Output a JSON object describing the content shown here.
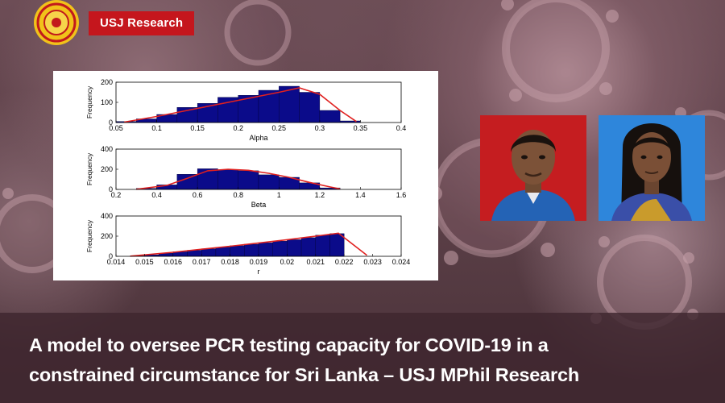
{
  "header": {
    "badge_label": "USJ Research",
    "logo_icon": "usj-crest-logo"
  },
  "colors": {
    "badge": "#c5161d",
    "bars": "#0b0b8a",
    "fit_line": "#e0201f",
    "photo1_bg": "#c51d20",
    "photo2_bg": "#2e86db"
  },
  "chart_data": [
    {
      "type": "bar",
      "xlabel": "Alpha",
      "ylabel": "Frequency",
      "xlim": [
        0.05,
        0.4
      ],
      "ylim": [
        0,
        200
      ],
      "x_ticks": [
        "0.05",
        "0.1",
        "0.15",
        "0.2",
        "0.25",
        "0.3",
        "0.35",
        "0.4"
      ],
      "y_ticks": [
        "0",
        "100",
        "200"
      ],
      "bin_edges": [
        0.05,
        0.075,
        0.1,
        0.125,
        0.15,
        0.175,
        0.2,
        0.225,
        0.25,
        0.275,
        0.3,
        0.325,
        0.35
      ],
      "values": [
        5,
        18,
        40,
        75,
        95,
        125,
        135,
        160,
        180,
        150,
        60,
        8
      ],
      "fit": [
        [
          0.06,
          2
        ],
        [
          0.1,
          30
        ],
        [
          0.15,
          70
        ],
        [
          0.2,
          110
        ],
        [
          0.25,
          150
        ],
        [
          0.275,
          172
        ],
        [
          0.3,
          140
        ],
        [
          0.325,
          60
        ],
        [
          0.345,
          5
        ]
      ]
    },
    {
      "type": "bar",
      "xlabel": "Beta",
      "ylabel": "Frequency",
      "xlim": [
        0.2,
        1.6
      ],
      "ylim": [
        0,
        400
      ],
      "x_ticks": [
        "0.2",
        "0.4",
        "0.6",
        "0.8",
        "1",
        "1.2",
        "1.4",
        "1.6"
      ],
      "y_ticks": [
        "0",
        "200",
        "400"
      ],
      "bin_edges": [
        0.3,
        0.4,
        0.5,
        0.6,
        0.7,
        0.8,
        0.9,
        1.0,
        1.1,
        1.2,
        1.3
      ],
      "values": [
        10,
        45,
        150,
        205,
        195,
        185,
        145,
        120,
        65,
        15
      ],
      "fit": [
        [
          0.3,
          2
        ],
        [
          0.45,
          40
        ],
        [
          0.55,
          110
        ],
        [
          0.65,
          185
        ],
        [
          0.75,
          200
        ],
        [
          0.85,
          190
        ],
        [
          0.95,
          160
        ],
        [
          1.05,
          120
        ],
        [
          1.15,
          70
        ],
        [
          1.25,
          25
        ],
        [
          1.3,
          5
        ]
      ]
    },
    {
      "type": "bar",
      "xlabel": "r",
      "ylabel": "Frequency",
      "xlim": [
        0.014,
        0.024
      ],
      "ylim": [
        0,
        400
      ],
      "x_ticks": [
        "0.014",
        "0.015",
        "0.016",
        "0.017",
        "0.018",
        "0.019",
        "0.02",
        "0.021",
        "0.022",
        "0.023",
        "0.024"
      ],
      "y_ticks": [
        "0",
        "200",
        "400"
      ],
      "bin_edges": [
        0.0145,
        0.015,
        0.0155,
        0.016,
        0.0165,
        0.017,
        0.0175,
        0.018,
        0.0185,
        0.019,
        0.0195,
        0.02,
        0.0205,
        0.021,
        0.0215,
        0.022
      ],
      "values": [
        5,
        15,
        30,
        45,
        60,
        75,
        90,
        105,
        120,
        135,
        150,
        165,
        185,
        210,
        225
      ],
      "fit": [
        [
          0.0145,
          2
        ],
        [
          0.016,
          40
        ],
        [
          0.018,
          100
        ],
        [
          0.02,
          165
        ],
        [
          0.021,
          200
        ],
        [
          0.0218,
          230
        ],
        [
          0.0223,
          120
        ],
        [
          0.0228,
          10
        ]
      ]
    }
  ],
  "photos": [
    {
      "name": "researcher-1-photo"
    },
    {
      "name": "researcher-2-photo"
    }
  ],
  "caption": {
    "line1": "A model to oversee PCR testing capacity for COVID-19 in a",
    "line2": "constrained circumstance for Sri Lanka – USJ MPhil Research"
  }
}
